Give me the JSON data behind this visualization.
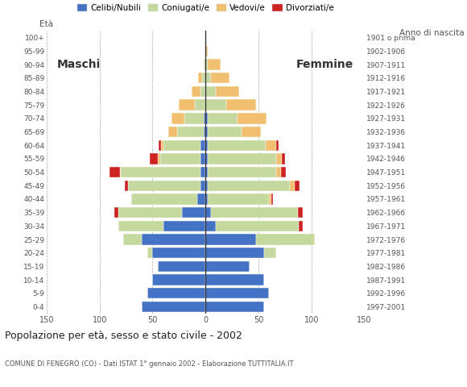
{
  "age_groups": [
    "0-4",
    "5-9",
    "10-14",
    "15-19",
    "20-24",
    "25-29",
    "30-34",
    "35-39",
    "40-44",
    "45-49",
    "50-54",
    "55-59",
    "60-64",
    "65-69",
    "70-74",
    "75-79",
    "80-84",
    "85-89",
    "90-94",
    "95-99",
    "100+"
  ],
  "birth_years": [
    "1997-2001",
    "1992-1996",
    "1987-1991",
    "1982-1986",
    "1977-1981",
    "1972-1976",
    "1967-1971",
    "1962-1966",
    "1957-1961",
    "1952-1956",
    "1947-1951",
    "1942-1946",
    "1937-1941",
    "1932-1936",
    "1927-1931",
    "1922-1926",
    "1917-1921",
    "1912-1916",
    "1907-1911",
    "1902-1906",
    "1901 o prima"
  ],
  "males": {
    "celibe": [
      60,
      55,
      50,
      45,
      50,
      60,
      40,
      22,
      8,
      5,
      5,
      5,
      5,
      2,
      2,
      0,
      0,
      0,
      0,
      0,
      0
    ],
    "coniugato": [
      0,
      0,
      0,
      0,
      5,
      18,
      42,
      60,
      62,
      68,
      75,
      38,
      35,
      25,
      18,
      10,
      5,
      3,
      1,
      0,
      0
    ],
    "vedovo": [
      0,
      0,
      0,
      0,
      0,
      0,
      0,
      0,
      0,
      0,
      1,
      2,
      2,
      8,
      12,
      15,
      8,
      4,
      1,
      0,
      0
    ],
    "divorziato": [
      0,
      0,
      0,
      0,
      0,
      0,
      0,
      4,
      0,
      3,
      10,
      8,
      2,
      0,
      0,
      0,
      0,
      0,
      0,
      0,
      0
    ]
  },
  "females": {
    "celibe": [
      55,
      60,
      55,
      42,
      55,
      48,
      10,
      5,
      2,
      2,
      2,
      2,
      2,
      2,
      2,
      0,
      0,
      0,
      0,
      0,
      0
    ],
    "coniugato": [
      0,
      0,
      0,
      0,
      12,
      55,
      78,
      82,
      58,
      78,
      65,
      65,
      55,
      32,
      28,
      20,
      10,
      5,
      2,
      0,
      0
    ],
    "vedovo": [
      0,
      0,
      0,
      0,
      0,
      0,
      0,
      0,
      2,
      4,
      4,
      5,
      10,
      18,
      28,
      28,
      22,
      18,
      12,
      2,
      0
    ],
    "divorziato": [
      0,
      0,
      0,
      0,
      0,
      0,
      4,
      5,
      2,
      5,
      5,
      3,
      2,
      0,
      0,
      0,
      0,
      0,
      0,
      0,
      0
    ]
  },
  "colors": {
    "celibe": "#4472c4",
    "coniugato": "#c5d89d",
    "vedovo": "#f0c070",
    "divorziato": "#cc2222"
  },
  "xlim": 150,
  "title": "Popolazione per età, sesso e stato civile - 2002",
  "subtitle": "COMUNE DI FENEGRÒ (CO) - Dati ISTAT 1° gennaio 2002 - Elaborazione TUTTITALIA.IT",
  "ylabel_left": "Età",
  "ylabel_right": "Anno di nascita",
  "label_maschi": "Maschi",
  "label_femmine": "Femmine",
  "legend_labels": [
    "Celibi/Nubili",
    "Coniugati/e",
    "Vedovi/e",
    "Divorziati/e"
  ],
  "bg_color": "#ffffff",
  "grid_color": "#aaaaaa",
  "xticks": [
    -150,
    -100,
    -50,
    0,
    50,
    100,
    150
  ]
}
